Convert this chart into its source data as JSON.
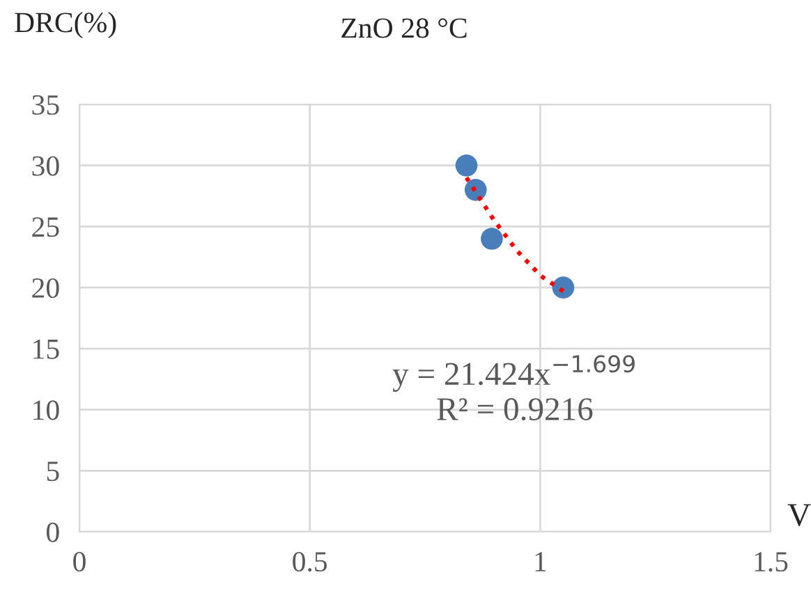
{
  "chart_data": {
    "type": "scatter",
    "title": "ZnO 28 °C",
    "xlabel": "V",
    "ylabel": "DRC(%)",
    "xlim": [
      0,
      1.5
    ],
    "xticks": [
      0,
      0.5,
      1,
      1.5
    ],
    "ylim": [
      0,
      35
    ],
    "yticks": [
      0,
      5,
      10,
      15,
      20,
      25,
      30,
      35
    ],
    "grid": true,
    "legend": false,
    "series": [
      {
        "color": "#4a7ebb",
        "marker": "circle",
        "x": [
          0.84,
          0.86,
          0.895,
          1.05
        ],
        "values": [
          30,
          28,
          24,
          20
        ]
      },
      {
        "type": "line",
        "color": "#ff0000",
        "line_style": "dotted",
        "marker": "none",
        "x": [
          0.84,
          0.9,
          0.95,
          1.0,
          1.05
        ],
        "values": [
          29,
          25.5,
          23,
          21,
          19.7
        ]
      }
    ],
    "annotations": [
      "y = 21.424x$^{−1.699}$",
      "R² = 0.9216"
    ]
  }
}
